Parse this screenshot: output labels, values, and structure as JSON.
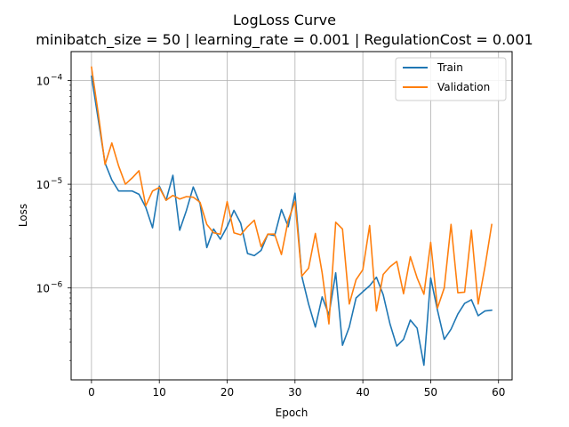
{
  "chart_data": {
    "type": "line",
    "title": "LogLoss Curve",
    "subtitle": "minibatch_size = 50 | learning_rate = 0.001 | RegulationCost = 0.001",
    "xlabel": "Epoch",
    "ylabel": "Loss",
    "yscale": "log",
    "xlim": [
      -3,
      62
    ],
    "ylim": [
      1.3e-07,
      0.00019
    ],
    "xticks": [
      0,
      10,
      20,
      30,
      40,
      50,
      60
    ],
    "xtick_labels": [
      "0",
      "10",
      "20",
      "30",
      "40",
      "50",
      "60"
    ],
    "yticks": [
      1e-06,
      1e-05,
      0.0001
    ],
    "ytick_labels": [
      "10",
      "10",
      "10"
    ],
    "ytick_exponents": [
      "−6",
      "−5",
      "−4"
    ],
    "grid": true,
    "legend_position": "top-right",
    "series": [
      {
        "name": "Train",
        "color": "#1f77b4",
        "x": [
          0,
          1,
          2,
          3,
          4,
          5,
          6,
          7,
          8,
          9,
          10,
          11,
          12,
          13,
          14,
          15,
          16,
          17,
          18,
          19,
          20,
          21,
          22,
          23,
          24,
          25,
          26,
          27,
          28,
          29,
          30,
          31,
          32,
          33,
          34,
          35,
          36,
          37,
          38,
          39,
          40,
          41,
          42,
          43,
          44,
          45,
          46,
          47,
          48,
          49,
          50,
          51,
          52,
          53,
          54,
          55,
          56,
          57,
          58,
          59
        ],
        "values": [
          0.00011,
          4.2e-05,
          1.6e-05,
          1.1e-05,
          8.6e-06,
          8.6e-06,
          8.6e-06,
          8e-06,
          6e-06,
          3.8e-06,
          9.6e-06,
          7e-06,
          1.22e-05,
          3.6e-06,
          5.6e-06,
          9.4e-06,
          6.5e-06,
          2.45e-06,
          3.7e-06,
          2.95e-06,
          3.9e-06,
          5.6e-06,
          4.2e-06,
          2.15e-06,
          2.05e-06,
          2.3e-06,
          3.3e-06,
          3.2e-06,
          5.7e-06,
          3.9e-06,
          8.2e-06,
          1.3e-06,
          7e-07,
          4.2e-07,
          8.2e-07,
          5.5e-07,
          1.4e-06,
          2.8e-07,
          4.2e-07,
          8e-07,
          9.2e-07,
          1.05e-06,
          1.27e-06,
          8.6e-07,
          4.5e-07,
          2.75e-07,
          3.2e-07,
          4.9e-07,
          4.1e-07,
          1.8e-07,
          1.25e-06,
          6.1e-07,
          3.2e-07,
          4e-07,
          5.6e-07,
          7.1e-07,
          7.7e-07,
          5.4e-07,
          6e-07,
          6.1e-07
        ]
      },
      {
        "name": "Validation",
        "color": "#ff7f0e",
        "x": [
          0,
          1,
          2,
          3,
          4,
          5,
          6,
          7,
          8,
          9,
          10,
          11,
          12,
          13,
          14,
          15,
          16,
          17,
          18,
          19,
          20,
          21,
          22,
          23,
          24,
          25,
          26,
          27,
          28,
          29,
          30,
          31,
          32,
          33,
          34,
          35,
          36,
          37,
          38,
          39,
          40,
          41,
          42,
          43,
          44,
          45,
          46,
          47,
          48,
          49,
          50,
          51,
          52,
          53,
          54,
          55,
          56,
          57,
          58,
          59
        ],
        "values": [
          0.000135,
          4.8e-05,
          1.55e-05,
          2.5e-05,
          1.5e-05,
          1e-05,
          1.15e-05,
          1.35e-05,
          6.2e-06,
          8.6e-06,
          9.3e-06,
          7e-06,
          7.8e-06,
          7.2e-06,
          7.6e-06,
          7.5e-06,
          6.7e-06,
          4.1e-06,
          3.4e-06,
          3.3e-06,
          6.8e-06,
          3.4e-06,
          3.25e-06,
          3.9e-06,
          4.5e-06,
          2.5e-06,
          3.3e-06,
          3.3e-06,
          2.1e-06,
          4.5e-06,
          6.8e-06,
          1.3e-06,
          1.55e-06,
          3.35e-06,
          1.4e-06,
          4.5e-07,
          4.3e-06,
          3.7e-06,
          7e-07,
          1.2e-06,
          1.5e-06,
          4e-06,
          6e-07,
          1.35e-06,
          1.6e-06,
          1.8e-06,
          8.8e-07,
          2e-06,
          1.25e-06,
          8.7e-07,
          2.75e-06,
          6.4e-07,
          1e-06,
          4.1e-06,
          9e-07,
          9.1e-07,
          3.6e-06,
          7e-07,
          1.6e-06,
          4.1e-06
        ]
      }
    ]
  }
}
